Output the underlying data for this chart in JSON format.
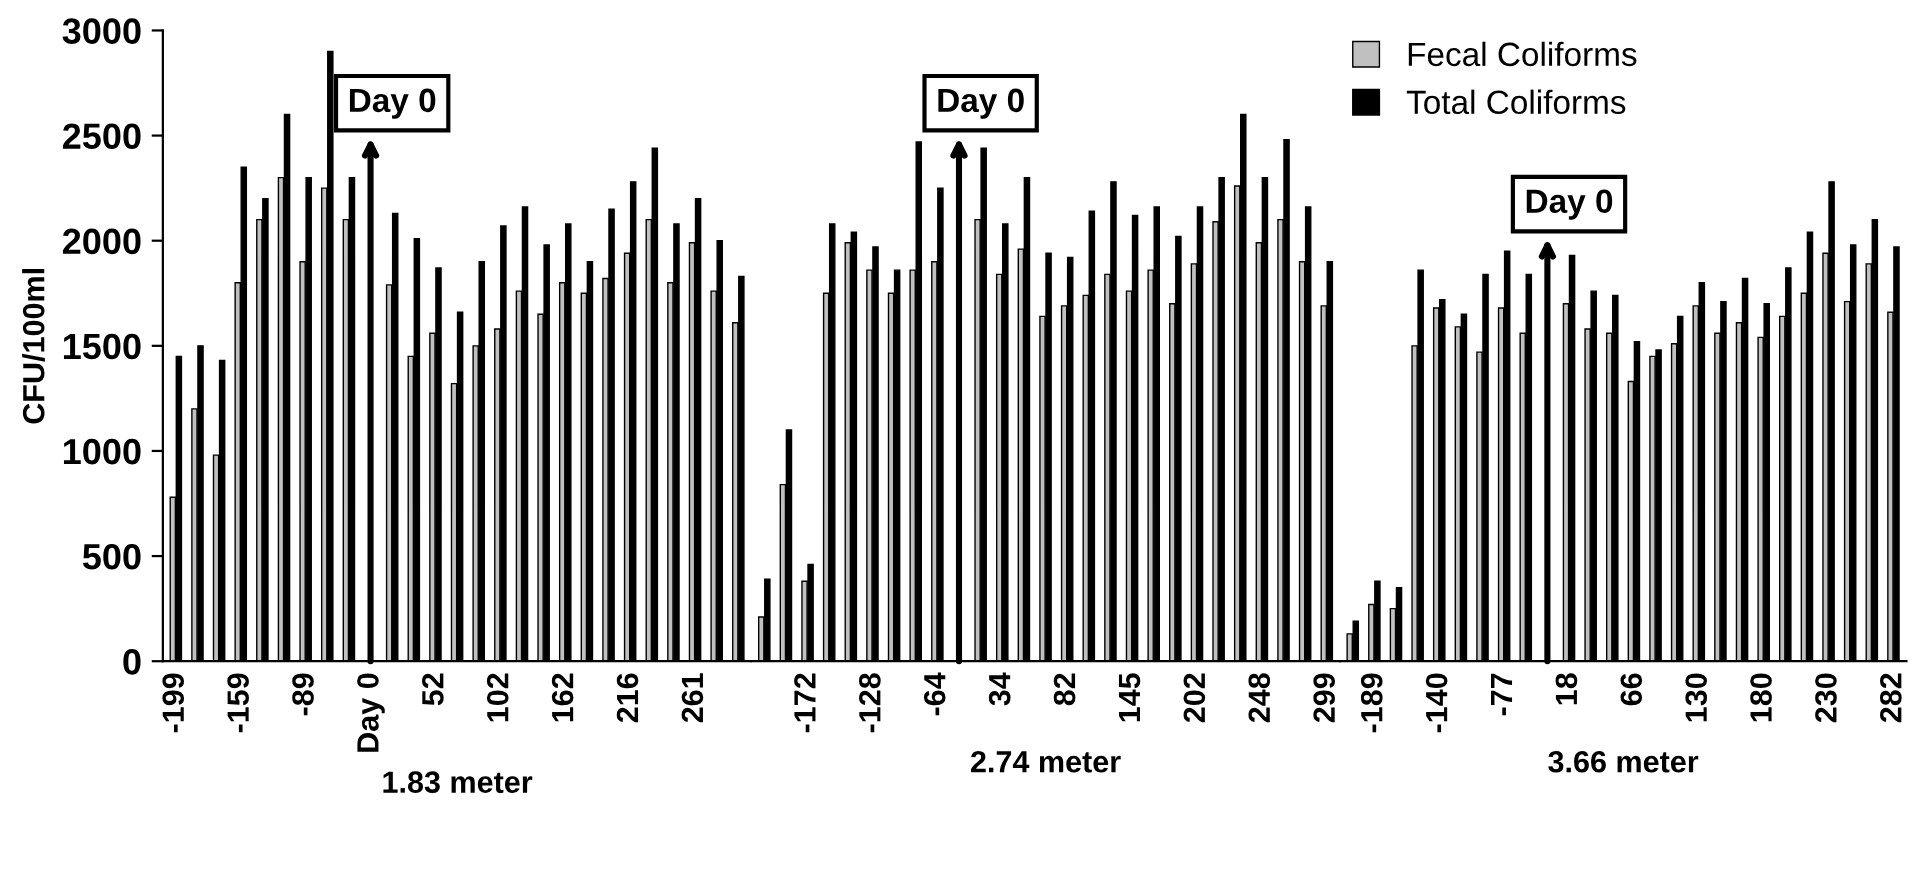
{
  "chart_data": [
    {
      "type": "bar",
      "xlabel": "1.83 meter",
      "ylabel": "CFU/100ml",
      "ylim": [
        0,
        3000
      ],
      "yticks": [
        0,
        500,
        1000,
        1500,
        2000,
        2500,
        3000
      ],
      "grid": false,
      "categories": [
        "-199",
        null,
        null,
        "-159",
        null,
        null,
        "-89",
        null,
        null,
        "Day 0",
        null,
        null,
        "52",
        null,
        null,
        "102",
        null,
        null,
        "162",
        null,
        null,
        "216",
        null,
        null,
        "261",
        null,
        null
      ],
      "series": [
        {
          "color": "#c0c0c0",
          "values": [
            780,
            1200,
            980,
            1800,
            2100,
            2300,
            1900,
            2250,
            2100,
            null,
            1790,
            1450,
            1560,
            1320,
            1500,
            1580,
            1760,
            1650,
            1800,
            1750,
            1820,
            1940,
            2100,
            1800,
            1990,
            1760,
            1610
          ]
        },
        {
          "color": "#000000",
          "values": [
            1450,
            1500,
            1430,
            2350,
            2200,
            2600,
            2300,
            2900,
            2300,
            null,
            2130,
            2010,
            1870,
            1660,
            1900,
            2070,
            2160,
            1980,
            2080,
            1900,
            2150,
            2280,
            2440,
            2080,
            2200,
            2000,
            1830
          ]
        }
      ],
      "annotations": [
        "Day 0"
      ]
    },
    {
      "type": "bar",
      "xlabel": "2.74 meter",
      "ylim": [
        0,
        3000
      ],
      "tick_labels": "x",
      "grid": false,
      "categories": [
        null,
        null,
        "-172",
        null,
        null,
        "-128",
        null,
        null,
        "-64",
        null,
        null,
        "34",
        null,
        null,
        "82",
        null,
        null,
        "145",
        null,
        null,
        "202",
        null,
        null,
        "248",
        null,
        null,
        "299"
      ],
      "series": [
        {
          "color": "#c0c0c0",
          "values": [
            210,
            840,
            380,
            1750,
            1990,
            1860,
            1750,
            1860,
            1900,
            null,
            2100,
            1840,
            1960,
            1640,
            1690,
            1740,
            1840,
            1760,
            1860,
            1700,
            1890,
            2090,
            2260,
            1990,
            2100,
            1900,
            1690
          ]
        },
        {
          "color": "#000000",
          "values": [
            390,
            1100,
            460,
            2080,
            2040,
            1970,
            1860,
            2470,
            2250,
            null,
            2440,
            2080,
            2300,
            1940,
            1920,
            2140,
            2280,
            2120,
            2160,
            2020,
            2160,
            2300,
            2600,
            2300,
            2480,
            2160,
            1900
          ]
        }
      ],
      "annotations": [
        "Day 0"
      ]
    },
    {
      "type": "bar",
      "xlabel": "3.66 meter",
      "ylim": [
        0,
        3000
      ],
      "tick_labels": "x",
      "grid": false,
      "legend": "top left",
      "categories": [
        null,
        "-189",
        null,
        null,
        "-140",
        null,
        null,
        "-77",
        null,
        null,
        "18",
        null,
        null,
        "66",
        null,
        null,
        "130",
        null,
        null,
        "180",
        null,
        null,
        "230",
        null,
        null,
        "282"
      ],
      "series": [
        {
          "name": "Fecal Coliforms",
          "color": "#c0c0c0",
          "values": [
            130,
            270,
            250,
            1500,
            1680,
            1590,
            1470,
            1680,
            1560,
            null,
            1700,
            1580,
            1560,
            1330,
            1450,
            1510,
            1690,
            1560,
            1610,
            1540,
            1640,
            1750,
            1940,
            1710,
            1890,
            1660
          ]
        },
        {
          "name": "Total Coliforms",
          "color": "#000000",
          "values": [
            190,
            380,
            350,
            1860,
            1720,
            1650,
            1840,
            1950,
            1840,
            null,
            1930,
            1760,
            1740,
            1520,
            1480,
            1640,
            1800,
            1710,
            1820,
            1700,
            1870,
            2040,
            2280,
            1980,
            2100,
            1970
          ]
        }
      ],
      "annotations": [
        "Day 0"
      ]
    }
  ]
}
